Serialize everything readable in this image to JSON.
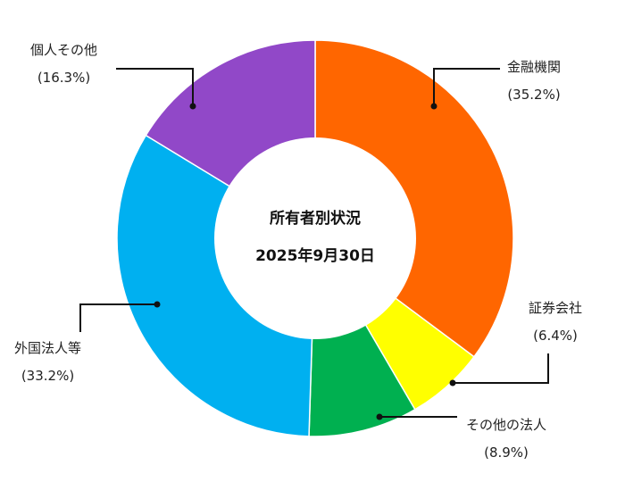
{
  "chart_data": {
    "type": "pie",
    "subtype": "donut",
    "title": "所有者別状況",
    "subtitle": "2025年9月30日",
    "start_angle_deg": 0,
    "direction": "clockwise",
    "categories": [
      "金融機関",
      "証券会社",
      "その他の法人",
      "外国法人等",
      "個人その他"
    ],
    "values": [
      35.2,
      6.4,
      8.9,
      33.2,
      16.3
    ],
    "value_labels": [
      "(35.2%)",
      "(6.4%)",
      "(8.9%)",
      "(33.2%)",
      "(16.3%)"
    ],
    "colors": [
      "#FF6600",
      "#FFFF00",
      "#00B050",
      "#00B0F0",
      "#9148C8"
    ],
    "unit": "%",
    "legend": "none (leader-line labels)"
  },
  "center": {
    "title": "所有者別状況",
    "date": "2025年9月30日"
  },
  "labels": [
    {
      "name": "金融機関",
      "pct": "(35.2%)"
    },
    {
      "name": "証券会社",
      "pct": "(6.4%)"
    },
    {
      "name": "その他の法人",
      "pct": "(8.9%)"
    },
    {
      "name": "外国法人等",
      "pct": "(33.2%)"
    },
    {
      "name": "個人その他",
      "pct": "(16.3%)"
    }
  ]
}
